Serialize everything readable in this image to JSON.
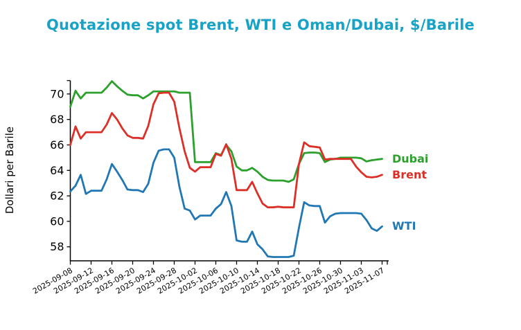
{
  "title": "Quotazione spot Brent, WTI e Oman/Dubai, $/Barile",
  "ylabel": "Dollari per Barile",
  "colors": {
    "title": "#17a2c6",
    "axis": "#000000",
    "dubai": "#2ca02c",
    "brent": "#dc2f27",
    "wti": "#2077b4"
  },
  "chart_data": {
    "type": "line",
    "title": "Quotazione spot Brent, WTI e Oman/Dubai, $/Barile",
    "xlabel": "",
    "ylabel": "Dollari per Barile",
    "ylim": [
      56.9,
      71.05
    ],
    "yticks": [
      58,
      60,
      62,
      64,
      66,
      68,
      70
    ],
    "xtick_every": 4,
    "grid": false,
    "legend_position": "right-of-line-ends",
    "x": [
      "2025-09-08",
      "2025-09-09",
      "2025-09-10",
      "2025-09-11",
      "2025-09-12",
      "2025-09-13",
      "2025-09-14",
      "2025-09-15",
      "2025-09-16",
      "2025-09-17",
      "2025-09-18",
      "2025-09-19",
      "2025-09-20",
      "2025-09-21",
      "2025-09-22",
      "2025-09-23",
      "2025-09-24",
      "2025-09-25",
      "2025-09-26",
      "2025-09-27",
      "2025-09-28",
      "2025-09-29",
      "2025-09-30",
      "2025-10-01",
      "2025-10-02",
      "2025-10-03",
      "2025-10-04",
      "2025-10-05",
      "2025-10-06",
      "2025-10-07",
      "2025-10-08",
      "2025-10-09",
      "2025-10-10",
      "2025-10-11",
      "2025-10-12",
      "2025-10-13",
      "2025-10-14",
      "2025-10-15",
      "2025-10-16",
      "2025-10-17",
      "2025-10-18",
      "2025-10-19",
      "2025-10-20",
      "2025-10-21",
      "2025-10-22",
      "2025-10-23",
      "2025-10-24",
      "2025-10-25",
      "2025-10-26",
      "2025-10-27",
      "2025-10-28",
      "2025-10-29",
      "2025-10-30",
      "2025-10-31",
      "2025-11-01",
      "2025-11-02",
      "2025-11-03",
      "2025-11-04",
      "2025-11-05",
      "2025-11-06",
      "2025-11-07"
    ],
    "series": [
      {
        "name": "Dubai",
        "color_key": "dubai",
        "values": [
          69.0,
          70.25,
          69.65,
          70.1,
          70.1,
          70.1,
          70.1,
          70.5,
          71.0,
          70.6,
          70.25,
          69.95,
          69.9,
          69.9,
          69.65,
          69.9,
          70.2,
          70.2,
          70.2,
          70.2,
          70.2,
          70.1,
          70.1,
          70.1,
          64.65,
          64.65,
          64.65,
          64.65,
          65.35,
          65.2,
          66.0,
          65.5,
          64.3,
          64.0,
          64.0,
          64.2,
          63.9,
          63.5,
          63.25,
          63.2,
          63.2,
          63.2,
          63.1,
          63.3,
          64.5,
          65.35,
          65.4,
          65.4,
          65.35,
          64.65,
          64.85,
          64.9,
          65.0,
          65.0,
          65.0,
          65.0,
          64.95,
          64.7,
          64.8,
          64.85,
          64.9
        ]
      },
      {
        "name": "Brent",
        "color_key": "brent",
        "values": [
          66.0,
          67.45,
          66.5,
          67.0,
          67.0,
          67.0,
          67.0,
          67.6,
          68.5,
          68.0,
          67.3,
          66.75,
          66.55,
          66.55,
          66.5,
          67.5,
          69.2,
          70.05,
          70.1,
          70.1,
          69.4,
          67.3,
          65.5,
          64.2,
          63.9,
          64.25,
          64.25,
          64.25,
          65.3,
          65.15,
          66.05,
          64.9,
          62.45,
          62.45,
          62.45,
          63.1,
          62.2,
          61.4,
          61.1,
          61.1,
          61.15,
          61.1,
          61.1,
          61.1,
          64.5,
          66.2,
          65.9,
          65.85,
          65.8,
          64.85,
          64.9,
          64.9,
          64.9,
          64.9,
          64.9,
          64.3,
          63.85,
          63.5,
          63.45,
          63.5,
          63.65
        ]
      },
      {
        "name": "WTI",
        "color_key": "wti",
        "values": [
          62.35,
          62.8,
          63.65,
          62.15,
          62.4,
          62.4,
          62.4,
          63.3,
          64.5,
          63.9,
          63.25,
          62.5,
          62.45,
          62.45,
          62.3,
          62.95,
          64.6,
          65.55,
          65.65,
          65.65,
          65.0,
          62.7,
          61.0,
          60.85,
          60.15,
          60.45,
          60.45,
          60.45,
          61.0,
          61.35,
          62.3,
          61.2,
          58.5,
          58.4,
          58.4,
          59.2,
          58.2,
          57.8,
          57.25,
          57.2,
          57.2,
          57.2,
          57.2,
          57.3,
          59.5,
          61.5,
          61.25,
          61.2,
          61.2,
          59.9,
          60.4,
          60.6,
          60.65,
          60.65,
          60.65,
          60.65,
          60.6,
          60.1,
          59.45,
          59.25,
          59.6
        ]
      }
    ]
  },
  "legend": {
    "dubai_label": "Dubai",
    "brent_label": "Brent",
    "wti_label": "WTI"
  }
}
